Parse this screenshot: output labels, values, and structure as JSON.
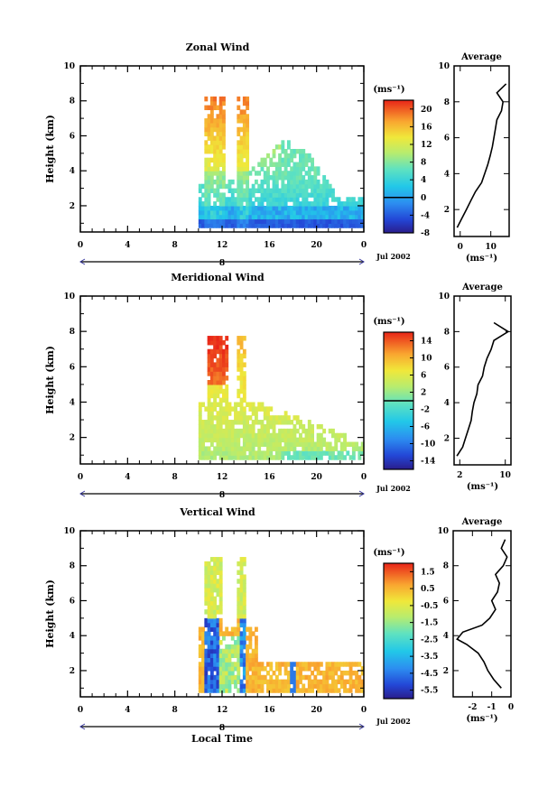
{
  "chart_data": [
    {
      "type": "heatmap",
      "title": "Zonal Wind",
      "ylabel": "Height (km)",
      "xlabel": "",
      "xlim": [
        0,
        24
      ],
      "ylim": [
        0.5,
        10
      ],
      "xticks": [
        "0",
        "4",
        "8",
        "12",
        "16",
        "20",
        "0"
      ],
      "yticks": [
        "2",
        "4",
        "6",
        "8",
        "10"
      ],
      "date_bar_label": "8",
      "date_label": "Jul 2002",
      "colorbar": {
        "unit": "(ms⁻¹)",
        "min": -8,
        "max": 22,
        "ticks": [
          "-8",
          "-4",
          "0",
          "4",
          "8",
          "12",
          "16",
          "20"
        ],
        "zero_line": 0
      },
      "data_summary": "Echo from 10 to 24 local time; strong winds (up to ~20 ms⁻¹) in columns near 11-12 h and 13-14 h reaching ~8 km; negative winds (-4 to -8 ms⁻¹) below ~1.5 km; ~4-8 ms⁻¹ around 2-3 km later in the day.",
      "average_profile": {
        "title": "Average",
        "xlabel": "(ms⁻¹)",
        "xticks": [
          "0",
          "10"
        ],
        "yticks": [
          "2",
          "4",
          "6",
          "8",
          "10"
        ],
        "xlim": [
          -2,
          16
        ],
        "height": [
          1.0,
          1.5,
          2.0,
          2.5,
          3.0,
          3.5,
          4.0,
          4.5,
          5.0,
          5.5,
          6.0,
          6.5,
          7.0,
          7.5,
          8.0,
          8.5,
          9.0
        ],
        "value": [
          -1,
          0.5,
          2.0,
          3.5,
          5.0,
          7.0,
          8.0,
          9.0,
          9.8,
          10.5,
          11.0,
          11.5,
          12.0,
          13.5,
          14.0,
          12.0,
          15.0
        ]
      }
    },
    {
      "type": "heatmap",
      "title": "Meridional Wind",
      "ylabel": "Height (km)",
      "xlabel": "",
      "xlim": [
        0,
        24
      ],
      "ylim": [
        0.5,
        10
      ],
      "xticks": [
        "0",
        "4",
        "8",
        "12",
        "16",
        "20",
        "0"
      ],
      "yticks": [
        "2",
        "4",
        "6",
        "8",
        "10"
      ],
      "date_bar_label": "8",
      "date_label": "Jul 2002",
      "colorbar": {
        "unit": "(ms⁻¹)",
        "min": -16,
        "max": 16,
        "ticks": [
          "-14",
          "-10",
          "-6",
          "-2",
          "2",
          "6",
          "10",
          "14"
        ],
        "zero_line": 0
      },
      "data_summary": "Echo from 10 to 24 local time; southerly winds up to ~14 ms⁻¹ aloft (6-8 km) near 11-13 h; weak winds (0 to 4 ms⁻¹) near the surface; mostly 2-6 ms⁻¹ at mid levels.",
      "average_profile": {
        "title": "Average",
        "xlabel": "(ms⁻¹)",
        "xticks": [
          "2",
          "10"
        ],
        "yticks": [
          "2",
          "4",
          "6",
          "8",
          "10"
        ],
        "xlim": [
          1,
          11
        ],
        "height": [
          1.0,
          1.5,
          2.0,
          2.5,
          3.0,
          3.5,
          4.0,
          4.5,
          5.0,
          5.5,
          6.0,
          6.5,
          7.0,
          7.5,
          8.0,
          8.5
        ],
        "value": [
          1.5,
          2.5,
          3.0,
          3.5,
          4.0,
          4.2,
          4.5,
          5.0,
          5.2,
          6.0,
          6.3,
          6.8,
          7.5,
          8.0,
          10.5,
          8.0
        ]
      }
    },
    {
      "type": "heatmap",
      "title": "Vertical Wind",
      "ylabel": "Height (km)",
      "xlabel": "Local Time",
      "xlim": [
        0,
        24
      ],
      "ylim": [
        0.5,
        10
      ],
      "xticks": [
        "0",
        "4",
        "8",
        "12",
        "16",
        "20",
        "0"
      ],
      "yticks": [
        "2",
        "4",
        "6",
        "8",
        "10"
      ],
      "date_bar_label": "8",
      "date_label": "Jul 2002",
      "colorbar": {
        "unit": "(ms⁻¹)",
        "min": -6,
        "max": 2,
        "ticks": [
          "-5.5",
          "-4.5",
          "-3.5",
          "-2.5",
          "-1.5",
          "-0.5",
          "0.5",
          "1.5"
        ],
        "zero_line": null
      },
      "data_summary": "Echo from 10 to 24 local time; strong downdrafts (-4 to -6 ms⁻¹) below ~5 km at 10.5-11.5 h and 13.5-14 h; near 0 ms⁻¹ elsewhere, ~0 to 0.5 ms⁻¹ at low levels.",
      "average_profile": {
        "title": "Average",
        "xlabel": "(ms⁻¹)",
        "xticks": [
          "-2",
          "-1",
          "0"
        ],
        "yticks": [
          "2",
          "4",
          "6",
          "8",
          "10"
        ],
        "xlim": [
          -3,
          0
        ],
        "height": [
          1.0,
          1.5,
          2.0,
          2.5,
          3.0,
          3.5,
          3.8,
          4.2,
          4.6,
          5.0,
          5.5,
          6.0,
          6.5,
          7.0,
          7.5,
          8.0,
          8.5,
          9.0,
          9.5
        ],
        "value": [
          -0.5,
          -0.9,
          -1.2,
          -1.4,
          -1.7,
          -2.3,
          -2.8,
          -2.5,
          -1.5,
          -1.1,
          -0.8,
          -1.0,
          -0.7,
          -0.6,
          -0.8,
          -0.4,
          -0.2,
          -0.5,
          -0.3
        ]
      }
    }
  ]
}
